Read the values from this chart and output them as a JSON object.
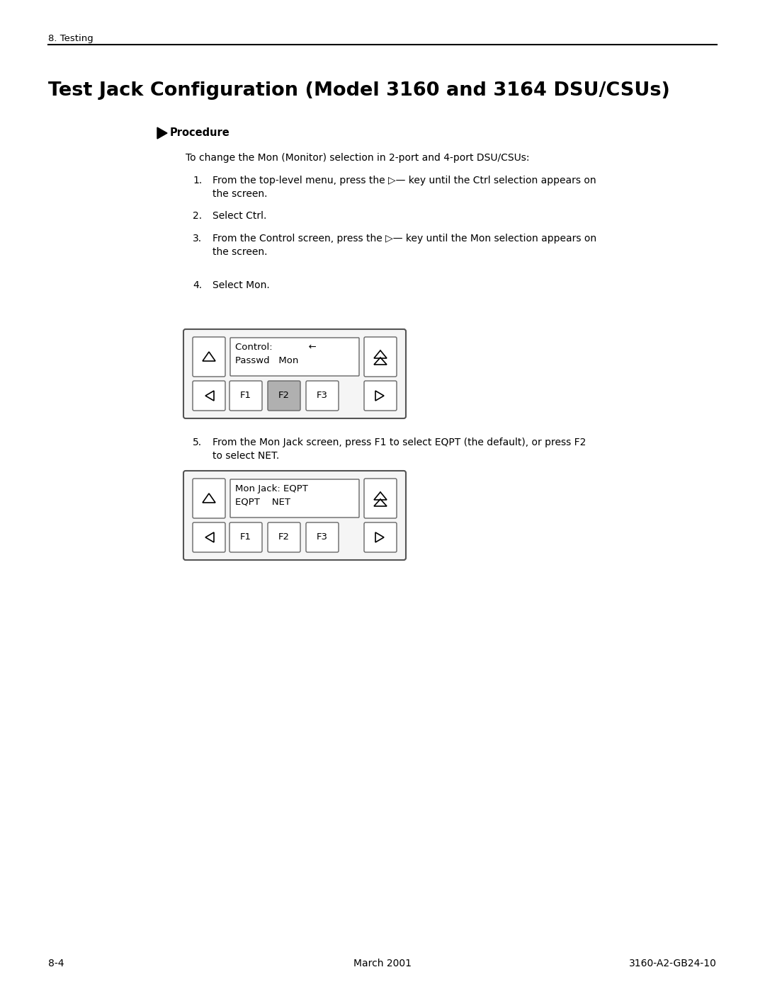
{
  "page_header": "8. Testing",
  "title": "Test Jack Configuration (Model 3160 and 3164 DSU/CSUs)",
  "procedure_label": "Procedure",
  "intro_text": "To change the Mon (Monitor) selection in 2-port and 4-port DSU/CSUs:",
  "step1": "From the top-level menu, press the ▷— key until the Ctrl selection appears on",
  "step1b": "the screen.",
  "step2": "Select Ctrl.",
  "step3": "From the Control screen, press the ▷— key until the Mon selection appears on",
  "step3b": "the screen.",
  "step4": "Select Mon.",
  "step5": "From the Mon Jack screen, press F1 to select EQPT (the default), or press F2",
  "step5b": "to select NET.",
  "display1_line1": "Control:            ←",
  "display1_line2": "Passwd   Mon",
  "display2_line1": "Mon Jack: EQPT",
  "display2_line2": "EQPT    NET",
  "footer_left": "8-4",
  "footer_center": "March 2001",
  "footer_right": "3160-A2-GB24-10",
  "bg_color": "#ffffff",
  "text_color": "#000000"
}
